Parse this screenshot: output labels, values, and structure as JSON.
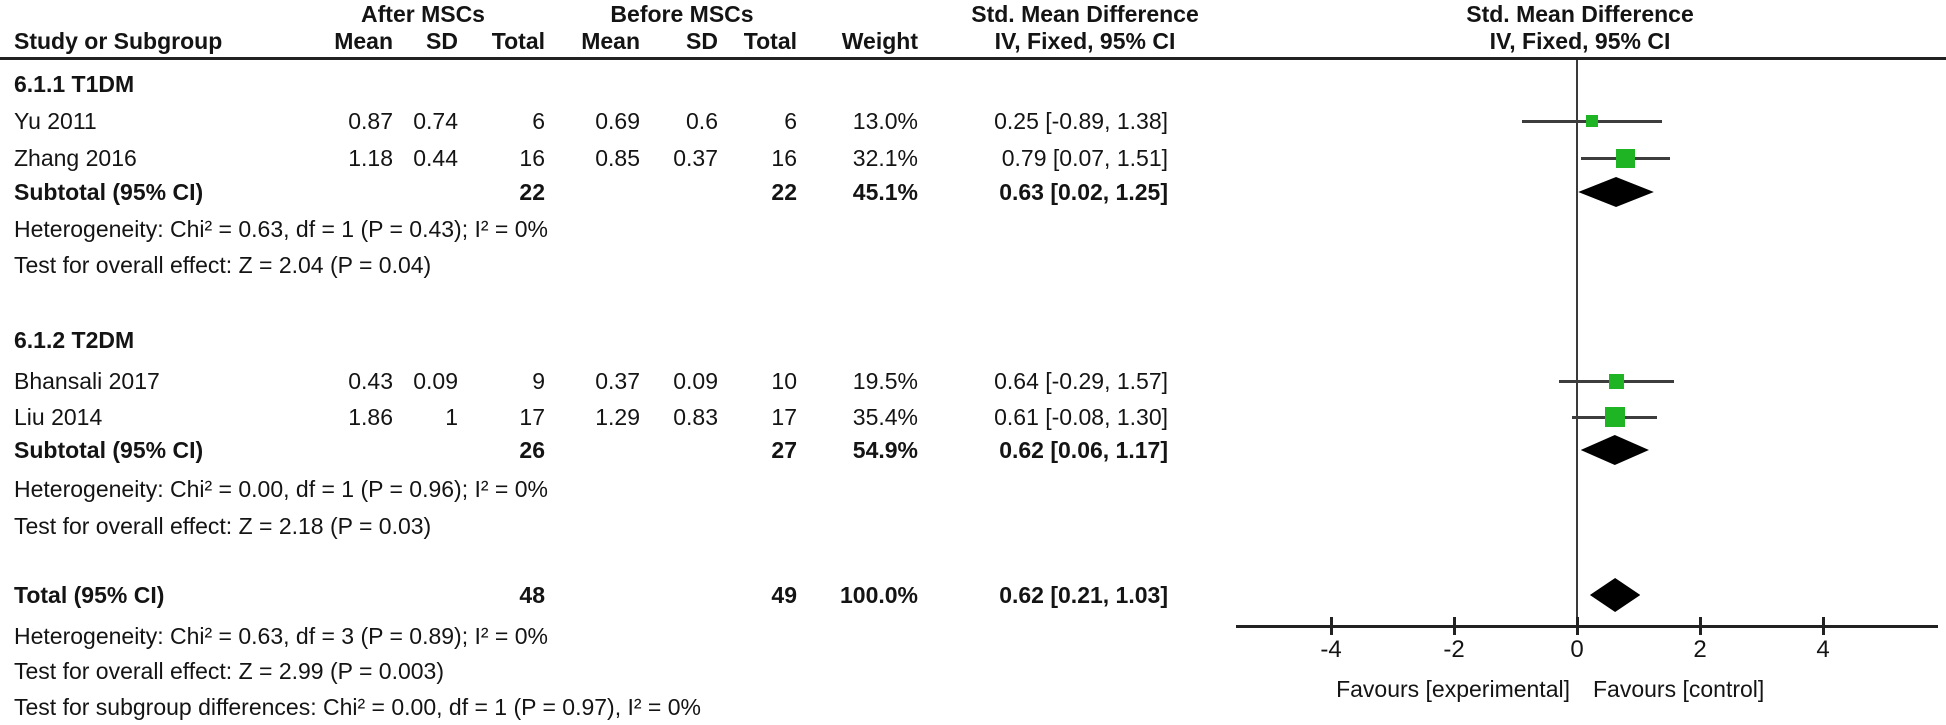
{
  "header": {
    "group_after": "After MSCs",
    "group_before": "Before MSCs",
    "smd_left": "Std. Mean Difference",
    "smd_right": "Std. Mean Difference",
    "col_study": "Study or Subgroup",
    "col_mean1": "Mean",
    "col_sd1": "SD",
    "col_total1": "Total",
    "col_mean2": "Mean",
    "col_sd2": "SD",
    "col_total2": "Total",
    "col_weight": "Weight",
    "ci_left": "IV, Fixed, 95% CI",
    "ci_right": "IV, Fixed, 95% CI"
  },
  "sections": [
    {
      "title": "6.1.1 T1DM",
      "studies": [
        {
          "name": "Yu 2011",
          "mean1": "0.87",
          "sd1": "0.74",
          "n1": "6",
          "mean2": "0.69",
          "sd2": "0.6",
          "n2": "6",
          "weight": "13.0%",
          "ci": "0.25 [-0.89, 1.38]"
        },
        {
          "name": "Zhang 2016",
          "mean1": "1.18",
          "sd1": "0.44",
          "n1": "16",
          "mean2": "0.85",
          "sd2": "0.37",
          "n2": "16",
          "weight": "32.1%",
          "ci": "0.79 [0.07, 1.51]"
        }
      ],
      "subtotal": {
        "label": "Subtotal (95% CI)",
        "n1": "22",
        "n2": "22",
        "weight": "45.1%",
        "ci": "0.63 [0.02, 1.25]"
      },
      "heterogeneity": "Heterogeneity: Chi² = 0.63, df = 1 (P = 0.43); I² = 0%",
      "overall": "Test for overall effect: Z = 2.04 (P = 0.04)"
    },
    {
      "title": "6.1.2 T2DM",
      "studies": [
        {
          "name": "Bhansali 2017",
          "mean1": "0.43",
          "sd1": "0.09",
          "n1": "9",
          "mean2": "0.37",
          "sd2": "0.09",
          "n2": "10",
          "weight": "19.5%",
          "ci": "0.64 [-0.29, 1.57]"
        },
        {
          "name": "Liu 2014",
          "mean1": "1.86",
          "sd1": "1",
          "n1": "17",
          "mean2": "1.29",
          "sd2": "0.83",
          "n2": "17",
          "weight": "35.4%",
          "ci": "0.61 [-0.08, 1.30]"
        }
      ],
      "subtotal": {
        "label": "Subtotal (95% CI)",
        "n1": "26",
        "n2": "27",
        "weight": "54.9%",
        "ci": "0.62 [0.06, 1.17]"
      },
      "heterogeneity": "Heterogeneity: Chi² = 0.00, df = 1 (P = 0.96); I² = 0%",
      "overall": "Test for overall effect: Z = 2.18 (P = 0.03)"
    }
  ],
  "total": {
    "label": "Total (95% CI)",
    "n1": "48",
    "n2": "49",
    "weight": "100.0%",
    "ci": "0.62 [0.21, 1.03]",
    "heterogeneity": "Heterogeneity: Chi² = 0.63, df = 3 (P = 0.89); I² = 0%",
    "overall": "Test for overall effect: Z = 2.99 (P = 0.003)",
    "subgroup": "Test for subgroup differences: Chi² = 0.00, df = 1 (P = 0.97), I² = 0%"
  },
  "chart_data": {
    "type": "forest",
    "title": "Std. Mean Difference, IV, Fixed, 95% CI",
    "xlim": [
      -5.5,
      5.9
    ],
    "ticks": [
      -4,
      -2,
      0,
      2,
      4
    ],
    "tick_labels": [
      "-4",
      "-2",
      "0",
      "2",
      "4"
    ],
    "favours_left": "Favours [experimental]",
    "favours_right": "Favours [control]",
    "points": [
      {
        "name": "Yu 2011",
        "type": "square",
        "est": 0.25,
        "lo": -0.89,
        "hi": 1.38,
        "weight": 13.0
      },
      {
        "name": "Zhang 2016",
        "type": "square",
        "est": 0.79,
        "lo": 0.07,
        "hi": 1.51,
        "weight": 32.1
      },
      {
        "name": "Subtotal T1DM",
        "type": "diamond",
        "est": 0.63,
        "lo": 0.02,
        "hi": 1.25,
        "weight": 45.1
      },
      {
        "name": "Bhansali 2017",
        "type": "square",
        "est": 0.64,
        "lo": -0.29,
        "hi": 1.57,
        "weight": 19.5
      },
      {
        "name": "Liu 2014",
        "type": "square",
        "est": 0.61,
        "lo": -0.08,
        "hi": 1.3,
        "weight": 35.4
      },
      {
        "name": "Subtotal T2DM",
        "type": "diamond",
        "est": 0.62,
        "lo": 0.06,
        "hi": 1.17,
        "weight": 54.9
      },
      {
        "name": "Total",
        "type": "diamond",
        "est": 0.62,
        "lo": 0.21,
        "hi": 1.03,
        "weight": 100.0,
        "total": true
      }
    ]
  },
  "colors": {
    "square": "#1eb423",
    "diamond": "#000000",
    "ci_line": "#3d3d3d",
    "text": "#141414"
  }
}
